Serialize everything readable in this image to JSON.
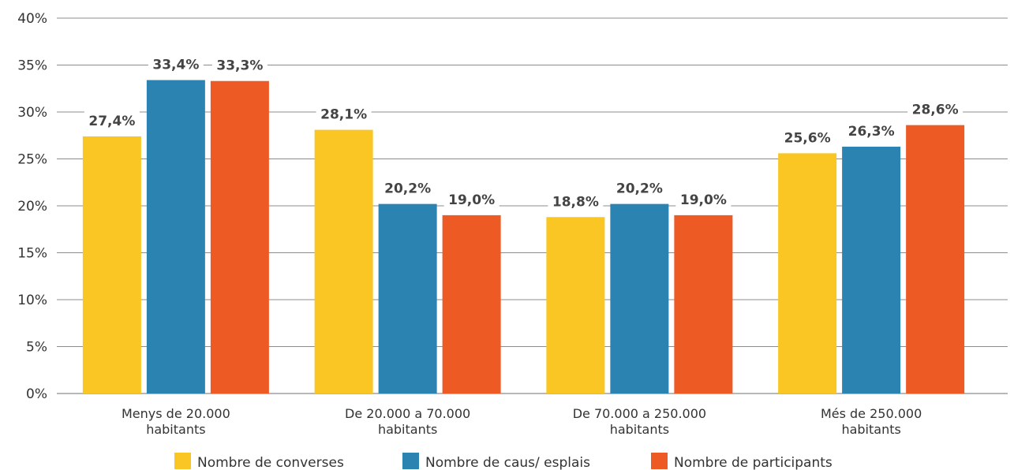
{
  "chart_data": {
    "type": "bar",
    "title": "",
    "xlabel": "",
    "ylabel": "",
    "ylim": [
      0,
      40
    ],
    "yticks": [
      "0%",
      "5%",
      "10%",
      "15%",
      "20%",
      "25%",
      "30%",
      "35%",
      "40%"
    ],
    "grid": true,
    "legend_position": "bottom",
    "categories": [
      [
        "Menys de 20.000",
        "habitants"
      ],
      [
        "De 20.000 a 70.000",
        "habitants"
      ],
      [
        "De 70.000 a 250.000",
        "habitants"
      ],
      [
        "Més de 250.000",
        "habitants"
      ]
    ],
    "series": [
      {
        "name": "Nombre de converses",
        "color": "#f9c623",
        "values": [
          27.4,
          28.1,
          18.8,
          25.6
        ],
        "labels": [
          "27,4%",
          "28,1%",
          "18,8%",
          "25,6%"
        ]
      },
      {
        "name": "Nombre de caus/ esplais",
        "color": "#2b83b1",
        "values": [
          33.4,
          20.2,
          20.2,
          26.3
        ],
        "labels": [
          "33,4%",
          "20,2%",
          "20,2%",
          "26,3%"
        ]
      },
      {
        "name": "Nombre de participants",
        "color": "#ee5a24",
        "values": [
          33.3,
          19.0,
          19.0,
          28.6
        ],
        "labels": [
          "33,3%",
          "19,0%",
          "19,0%",
          "28,6%"
        ]
      }
    ]
  }
}
